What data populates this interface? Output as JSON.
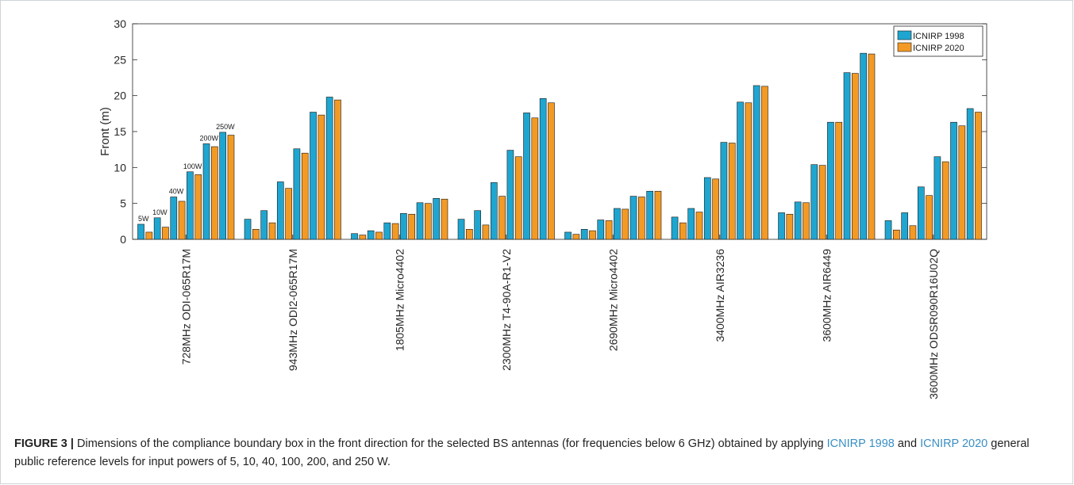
{
  "chart_data": {
    "type": "bar",
    "ylabel": "Front (m)",
    "ylim": [
      0,
      30
    ],
    "yticks": [
      0,
      5,
      10,
      15,
      20,
      25,
      30
    ],
    "grid": false,
    "legend_position": "top-right",
    "categories": [
      "728MHz ODI-065R17M",
      "943MHz ODI2-065R17M",
      "1805MHz Micro4402",
      "2300MHz T4-90A-R1-V2",
      "2690MHz Micro4402",
      "3400MHz AIR3236",
      "3600MHz AIR6449",
      "3600MHz ODSR090R16U02Q"
    ],
    "power_labels": [
      "5W",
      "10W",
      "40W",
      "100W",
      "200W",
      "250W"
    ],
    "series": [
      {
        "name": "ICNIRP 1998",
        "color": "#1fa6d0",
        "values": [
          [
            2.1,
            3.0,
            5.9,
            9.4,
            13.3,
            14.9
          ],
          [
            2.8,
            4.0,
            8.0,
            12.6,
            17.7,
            19.8
          ],
          [
            0.8,
            1.2,
            2.3,
            3.6,
            5.1,
            5.7
          ],
          [
            2.8,
            4.0,
            7.9,
            12.4,
            17.6,
            19.6
          ],
          [
            1.0,
            1.4,
            2.7,
            4.3,
            6.0,
            6.7
          ],
          [
            3.1,
            4.3,
            8.6,
            13.5,
            19.1,
            21.4
          ],
          [
            3.7,
            5.2,
            10.4,
            16.3,
            23.2,
            25.9
          ],
          [
            2.6,
            3.7,
            7.3,
            11.5,
            16.3,
            18.2
          ]
        ]
      },
      {
        "name": "ICNIRP 2020",
        "color": "#f39a25",
        "values": [
          [
            1.0,
            1.7,
            5.3,
            9.0,
            12.9,
            14.5
          ],
          [
            1.4,
            2.3,
            7.1,
            12.0,
            17.3,
            19.4
          ],
          [
            0.6,
            1.0,
            2.2,
            3.5,
            5.0,
            5.6
          ],
          [
            1.4,
            2.0,
            6.0,
            11.5,
            16.9,
            19.0
          ],
          [
            0.7,
            1.2,
            2.6,
            4.2,
            5.9,
            6.7
          ],
          [
            2.3,
            3.8,
            8.4,
            13.4,
            19.0,
            21.3
          ],
          [
            3.5,
            5.1,
            10.3,
            16.3,
            23.1,
            25.8
          ],
          [
            1.3,
            1.9,
            6.1,
            10.8,
            15.8,
            17.7
          ]
        ]
      }
    ]
  },
  "caption": {
    "label": "FIGURE 3 |",
    "part1": " Dimensions of the compliance boundary box in the front direction for the selected BS antennas (for frequencies below 6 GHz) obtained by applying ",
    "link1": "ICNIRP 1998",
    "part2": " and ",
    "link2": "ICNIRP 2020",
    "part3": " general public reference levels for input powers of 5, 10, 40, 100, 200, and 250 W."
  }
}
